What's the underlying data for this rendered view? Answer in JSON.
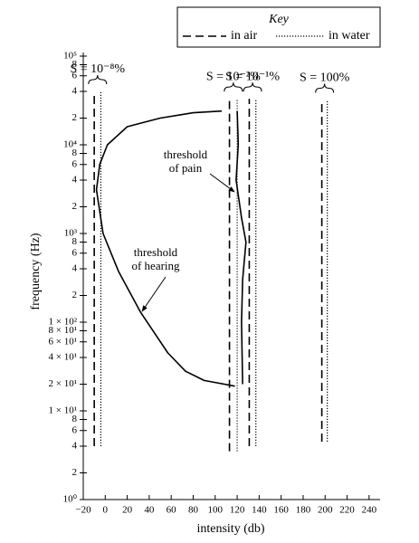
{
  "chart_data": {
    "type": "line",
    "key_title": "Key",
    "xlabel": "intensity (db)",
    "ylabel": "frequency (Hz)",
    "log_y": true,
    "xlim": [
      -20,
      250
    ],
    "ylim": [
      1,
      100000
    ],
    "xticks": [
      {
        "value": -20,
        "label": "−20"
      },
      0,
      20,
      40,
      60,
      80,
      100,
      120,
      140,
      160,
      180,
      200,
      220,
      240
    ],
    "yticks": [
      {
        "value": 1,
        "label": "10⁰"
      },
      2,
      4,
      6,
      8,
      {
        "value": 10,
        "label": "1 × 10¹"
      },
      {
        "value": 20,
        "label": "2 × 10¹"
      },
      {
        "value": 40,
        "label": "4 × 10¹"
      },
      {
        "value": 60,
        "label": "6 × 10¹"
      },
      {
        "value": 80,
        "label": "8 × 10¹"
      },
      {
        "value": 100,
        "label": "1 × 10²"
      },
      {
        "value": 200,
        "label": "2"
      },
      {
        "value": 400,
        "label": "4"
      },
      {
        "value": 600,
        "label": "6"
      },
      {
        "value": 800,
        "label": "8"
      },
      {
        "value": 1000,
        "label": "10³"
      },
      {
        "value": 2000,
        "label": "2"
      },
      {
        "value": 4000,
        "label": "4"
      },
      {
        "value": 6000,
        "label": "6"
      },
      {
        "value": 8000,
        "label": "8"
      },
      {
        "value": 10000,
        "label": "10⁴"
      },
      {
        "value": 20000,
        "label": "2"
      },
      {
        "value": 40000,
        "label": "4"
      },
      {
        "value": 60000,
        "label": "6"
      },
      {
        "value": 80000,
        "label": "8"
      },
      {
        "value": 100000,
        "label": "10⁵"
      }
    ],
    "series": [
      {
        "name": "in air",
        "style": "dashed",
        "color": "#000000"
      },
      {
        "name": "in water",
        "style": "dotted",
        "color": "#000000"
      }
    ],
    "levels": [
      {
        "label": "S = 10⁻⁸%",
        "air_x": -10,
        "water_x": -4,
        "range": [
          4,
          40000
        ]
      },
      {
        "label": "S = 10⁻²%",
        "air_x": 113,
        "water_x": 120,
        "range": [
          3.5,
          33000
        ]
      },
      {
        "label": "S = 10⁻¹%",
        "air_x": 131,
        "water_x": 137,
        "range": [
          4,
          33000
        ]
      },
      {
        "label": "S = 100%",
        "air_x": 197,
        "water_x": 202,
        "range": [
          4.5,
          32000
        ]
      }
    ],
    "curves": [
      {
        "label": [
          "threshold",
          "of hearing"
        ],
        "color": "#000000",
        "x": [
          118,
          90,
          73,
          57,
          32,
          12,
          -2,
          -8,
          -5,
          2,
          20,
          50,
          80,
          106
        ],
        "values": [
          19,
          22,
          28,
          45,
          130,
          375,
          1000,
          3100,
          6000,
          10000,
          16000,
          20000,
          23000,
          24000
        ]
      },
      {
        "label": [
          "threshold",
          "of pain"
        ],
        "color": "#000000",
        "x": [
          120,
          121,
          119,
          124,
          128,
          125,
          124,
          125
        ],
        "values": [
          24000,
          10000,
          4000,
          1500,
          800,
          300,
          100,
          20
        ]
      }
    ]
  }
}
